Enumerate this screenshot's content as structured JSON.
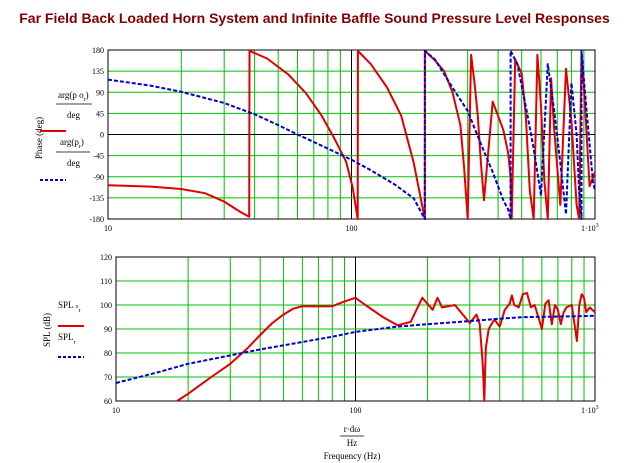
{
  "title": "Far Field Back Loaded Horn System and Infinite Baffle Sound Pressure Level Responses",
  "colors": {
    "title": "#800000",
    "grid": "#00c000",
    "series1": "#e00000",
    "series2": "#0000d0"
  },
  "chart_data": [
    {
      "type": "line",
      "xscale": "log",
      "xlim": [
        10,
        1000
      ],
      "ylim": [
        -180,
        180
      ],
      "yticks": [
        "180",
        "135",
        "90",
        "45",
        "0",
        "-45",
        "-90",
        "-135",
        "-180"
      ],
      "xticks": {
        "t10": "10",
        "t100": "100",
        "t1000_base": "1·10",
        "t1000_exp": "3"
      },
      "ylabel": "Phase (deg)",
      "legend": {
        "s1_num": "arg(p o",
        "s1_sub": "r",
        "s1_close": ")",
        "s1_den": "deg",
        "s2_num": "arg(p",
        "s2_sub": "r",
        "s2_close": ")",
        "s2_den": "deg"
      },
      "series": [
        {
          "style": "solid",
          "x": [
            10,
            15,
            20,
            25,
            30,
            35,
            38,
            38.1,
            45,
            55,
            65,
            75,
            85,
            95,
            101,
            106,
            106.2,
            120,
            140,
            160,
            180,
            200,
            200.2,
            220,
            240,
            260,
            280,
            290,
            300,
            310,
            320,
            330,
            340,
            350,
            380,
            420,
            440,
            450,
            455,
            470,
            500,
            520,
            540,
            560,
            580,
            600,
            620,
            640,
            660,
            680,
            720,
            760,
            800,
            840,
            860,
            880,
            900,
            950,
            1000
          ],
          "y": [
            -108,
            -111,
            -116,
            -125,
            -143,
            -165,
            -175,
            178,
            162,
            128,
            88,
            42,
            -8,
            -58,
            -112,
            -180,
            178,
            150,
            100,
            40,
            -60,
            -180,
            178,
            158,
            135,
            90,
            20,
            -70,
            -180,
            170,
            110,
            40,
            -60,
            -140,
            70,
            10,
            -40,
            -90,
            -180,
            160,
            130,
            40,
            -120,
            -180,
            170,
            60,
            -100,
            -180,
            120,
            10,
            -150,
            140,
            30,
            -150,
            -180,
            170,
            100,
            -110,
            -80
          ]
        },
        {
          "style": "dashed",
          "x": [
            10,
            15,
            20,
            30,
            40,
            50,
            60,
            70,
            80,
            100,
            120,
            150,
            180,
            200,
            200.2,
            220,
            260,
            300,
            340,
            380,
            420,
            440,
            450,
            450.2,
            480,
            520,
            560,
            600,
            640,
            680,
            720,
            760,
            800,
            840,
            860,
            880,
            880.2,
            920,
            980,
            1000
          ],
          "y": [
            117,
            104,
            91,
            67,
            43,
            20,
            0,
            -16,
            -30,
            -54,
            -76,
            -106,
            -136,
            -180,
            178,
            160,
            100,
            50,
            -20,
            -80,
            -140,
            -160,
            -180,
            178,
            150,
            60,
            -30,
            -130,
            150,
            50,
            -60,
            -170,
            110,
            0,
            -120,
            -180,
            178,
            60,
            -100,
            -120
          ]
        }
      ]
    },
    {
      "type": "line",
      "xscale": "log",
      "xlim": [
        10,
        1000
      ],
      "ylim": [
        60,
        120
      ],
      "yticks": [
        "120",
        "110",
        "100",
        "90",
        "80",
        "70",
        "60"
      ],
      "xticks": {
        "t10": "10",
        "t100": "100",
        "t1000_base": "1·10",
        "t1000_exp": "3"
      },
      "ylabel": "SPL (dB)",
      "xlabel_num": "r·dω",
      "xlabel_den": "Hz",
      "xlabel_unit": "Frequency (Hz)",
      "legend": {
        "s1_main": "SPL",
        "s1_sub": "o",
        "s1_subsub": "r",
        "s2_main": "SPL",
        "s2_sub": "r"
      },
      "series": [
        {
          "style": "solid",
          "x": [
            18,
            20,
            25,
            30,
            35,
            40,
            45,
            50,
            55,
            60,
            70,
            80,
            90,
            100,
            110,
            130,
            150,
            170,
            190,
            210,
            220,
            230,
            260,
            300,
            320,
            330,
            340,
            345,
            350,
            360,
            380,
            400,
            420,
            440,
            450,
            460,
            480,
            500,
            520,
            540,
            560,
            600,
            620,
            640,
            660,
            680,
            700,
            720,
            740,
            760,
            800,
            840,
            860,
            880,
            900,
            920,
            950,
            1000
          ],
          "y": [
            60,
            63,
            70,
            75.5,
            81.5,
            87.5,
            92.5,
            96,
            98.5,
            99.5,
            99.4,
            99.5,
            101.5,
            103,
            100,
            95,
            91.5,
            93,
            103,
            98,
            103,
            99,
            100,
            92.5,
            96,
            92,
            75,
            58,
            82,
            90,
            94,
            91,
            98,
            100.5,
            104,
            100,
            99,
            104.5,
            105,
            99,
            100,
            90,
            100.5,
            102,
            92,
            100,
            98,
            92,
            97,
            99,
            100,
            85,
            100,
            104.5,
            103,
            97,
            99,
            97
          ]
        },
        {
          "style": "dashed",
          "x": [
            10,
            15,
            20,
            30,
            40,
            60,
            80,
            100,
            150,
            200,
            300,
            400,
            500,
            600,
            800,
            1000
          ],
          "y": [
            67.5,
            72,
            75.5,
            79,
            81.5,
            84.6,
            86.8,
            88.8,
            91,
            92,
            93.3,
            94.3,
            94.9,
            95.1,
            95.3,
            95.5
          ]
        }
      ]
    }
  ]
}
